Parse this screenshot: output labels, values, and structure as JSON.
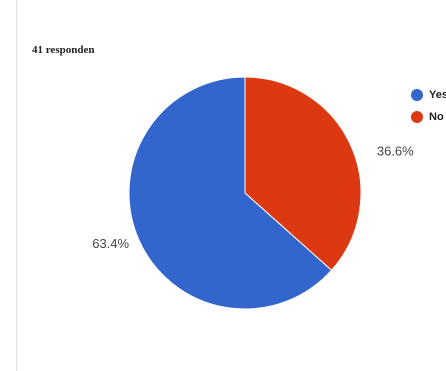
{
  "header": {
    "responses": "41 responden"
  },
  "chart_data": {
    "type": "pie",
    "title": "",
    "categories": [
      "Yes",
      "No"
    ],
    "values": [
      63.4,
      36.6
    ],
    "value_labels": [
      "63.4%",
      "36.6%"
    ],
    "colors": [
      "#3366cc",
      "#dc3912"
    ],
    "legend_position": "right"
  }
}
